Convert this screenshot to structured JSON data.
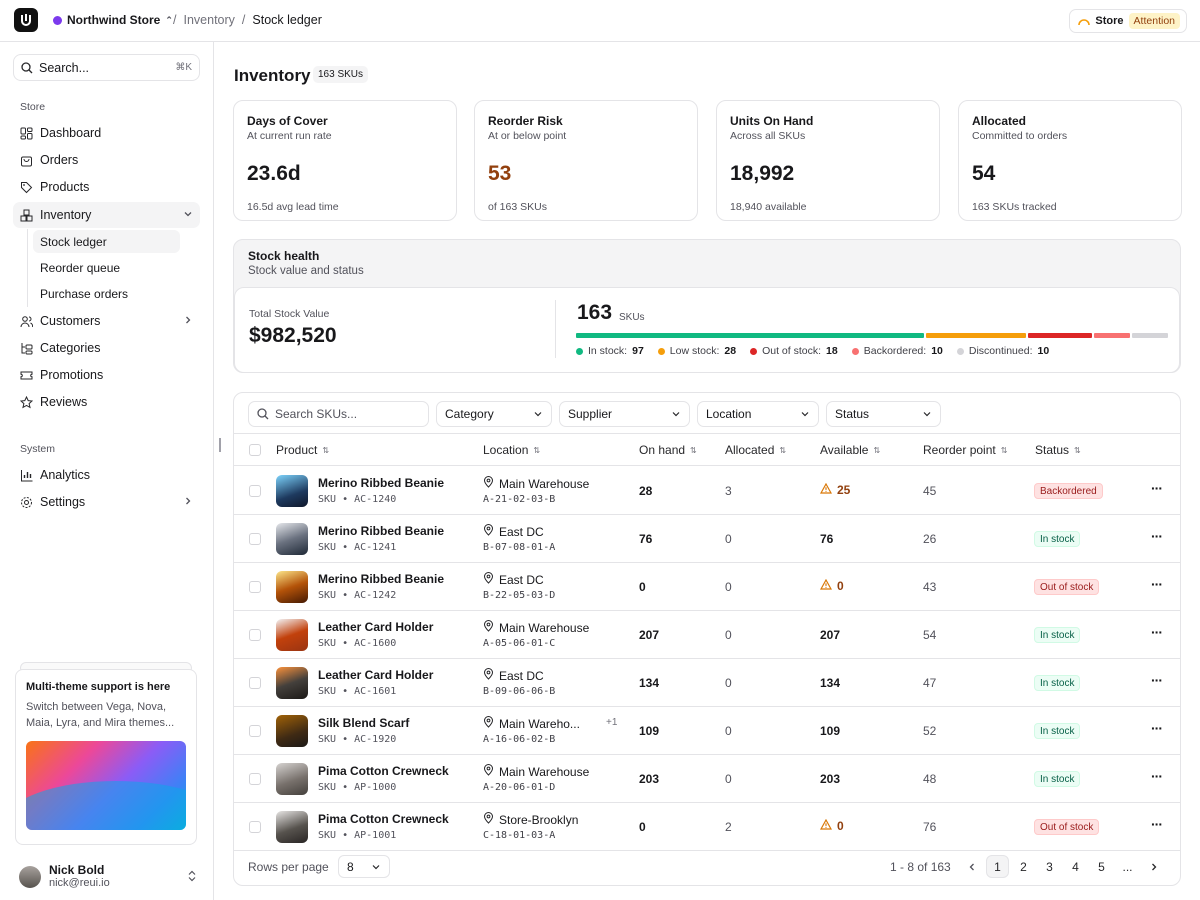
{
  "topbar": {
    "store_name": "Northwind Store",
    "breadcrumb": [
      "Inventory",
      "Stock ledger"
    ],
    "store_label": "Store",
    "attention_label": "Attention"
  },
  "sidebar": {
    "search_placeholder": "Search...",
    "search_shortcut": "⌘K",
    "section_store": "Store",
    "section_system": "System",
    "items": {
      "dashboard": "Dashboard",
      "orders": "Orders",
      "products": "Products",
      "inventory": "Inventory",
      "stock_ledger": "Stock ledger",
      "reorder_queue": "Reorder queue",
      "purchase_orders": "Purchase orders",
      "customers": "Customers",
      "categories": "Categories",
      "promotions": "Promotions",
      "reviews": "Reviews",
      "analytics": "Analytics",
      "settings": "Settings"
    },
    "promo": {
      "title": "Multi-theme support is here",
      "text": "Switch between Vega, Nova, Maia, Lyra, and Mira themes..."
    },
    "user": {
      "name": "Nick Bold",
      "email": "nick@reui.io"
    }
  },
  "page": {
    "title": "Inventory",
    "count_badge": "163 SKUs"
  },
  "kpis": [
    {
      "title": "Days of Cover",
      "subtitle": "At current run rate",
      "value": "23.6d",
      "footer": "16.5d avg lead time"
    },
    {
      "title": "Reorder Risk",
      "subtitle": "At or below point",
      "value": "53",
      "footer": "of 163 SKUs"
    },
    {
      "title": "Units On Hand",
      "subtitle": "Across all SKUs",
      "value": "18,992",
      "footer": "18,940 available"
    },
    {
      "title": "Allocated",
      "subtitle": "Committed to orders",
      "value": "54",
      "footer": "163 SKUs tracked"
    }
  ],
  "health": {
    "title": "Stock health",
    "subtitle": "Stock value and status",
    "total_label": "Total Stock Value",
    "total_value": "$982,520",
    "sku_count": "163",
    "sku_unit": "SKUs",
    "segments": [
      {
        "label": "In stock:",
        "value": 97,
        "color": "#10b981"
      },
      {
        "label": "Low stock:",
        "value": 28,
        "color": "#f59e0b"
      },
      {
        "label": "Out of stock:",
        "value": 18,
        "color": "#dc2626"
      },
      {
        "label": "Backordered:",
        "value": 10,
        "color": "#f87171"
      },
      {
        "label": "Discontinued:",
        "value": 10,
        "color": "#d4d4d8"
      }
    ]
  },
  "filters": {
    "search_placeholder": "Search SKUs...",
    "category": "Category",
    "supplier": "Supplier",
    "location": "Location",
    "status": "Status"
  },
  "columns": {
    "product": "Product",
    "location": "Location",
    "on_hand": "On hand",
    "allocated": "Allocated",
    "available": "Available",
    "reorder": "Reorder point",
    "status": "Status"
  },
  "rows": [
    {
      "name": "Merino Ribbed Beanie",
      "sku_label": "SKU",
      "sku": "AC-1240",
      "location": "Main Warehouse",
      "loc_code": "A-21-02-03-B",
      "extra": "",
      "on_hand": "28",
      "allocated": "3",
      "available": "25",
      "warn": true,
      "reorder": "45",
      "status": "Backordered",
      "status_kind": "back"
    },
    {
      "name": "Merino Ribbed Beanie",
      "sku_label": "SKU",
      "sku": "AC-1241",
      "location": "East DC",
      "loc_code": "B-07-08-01-A",
      "extra": "",
      "on_hand": "76",
      "allocated": "0",
      "available": "76",
      "warn": false,
      "reorder": "26",
      "status": "In stock",
      "status_kind": "in"
    },
    {
      "name": "Merino Ribbed Beanie",
      "sku_label": "SKU",
      "sku": "AC-1242",
      "location": "East DC",
      "loc_code": "B-22-05-03-D",
      "extra": "",
      "on_hand": "0",
      "allocated": "0",
      "available": "0",
      "warn": true,
      "reorder": "43",
      "status": "Out of stock",
      "status_kind": "out"
    },
    {
      "name": "Leather Card Holder",
      "sku_label": "SKU",
      "sku": "AC-1600",
      "location": "Main Warehouse",
      "loc_code": "A-05-06-01-C",
      "extra": "",
      "on_hand": "207",
      "allocated": "0",
      "available": "207",
      "warn": false,
      "reorder": "54",
      "status": "In stock",
      "status_kind": "in"
    },
    {
      "name": "Leather Card Holder",
      "sku_label": "SKU",
      "sku": "AC-1601",
      "location": "East DC",
      "loc_code": "B-09-06-06-B",
      "extra": "",
      "on_hand": "134",
      "allocated": "0",
      "available": "134",
      "warn": false,
      "reorder": "47",
      "status": "In stock",
      "status_kind": "in"
    },
    {
      "name": "Silk Blend Scarf",
      "sku_label": "SKU",
      "sku": "AC-1920",
      "location": "Main Wareho...",
      "loc_code": "A-16-06-02-B",
      "extra": "+1",
      "on_hand": "109",
      "allocated": "0",
      "available": "109",
      "warn": false,
      "reorder": "52",
      "status": "In stock",
      "status_kind": "in"
    },
    {
      "name": "Pima Cotton Crewneck",
      "sku_label": "SKU",
      "sku": "AP-1000",
      "location": "Main Warehouse",
      "loc_code": "A-20-06-01-D",
      "extra": "",
      "on_hand": "203",
      "allocated": "0",
      "available": "203",
      "warn": false,
      "reorder": "48",
      "status": "In stock",
      "status_kind": "in"
    },
    {
      "name": "Pima Cotton Crewneck",
      "sku_label": "SKU",
      "sku": "AP-1001",
      "location": "Store-Brooklyn",
      "loc_code": "C-18-01-03-A",
      "extra": "",
      "on_hand": "0",
      "allocated": "2",
      "available": "0",
      "warn": true,
      "reorder": "76",
      "status": "Out of stock",
      "status_kind": "out"
    }
  ],
  "pagination": {
    "rows_per_page_label": "Rows per page",
    "rows_per_page": "8",
    "range": "1 - 8 of 163",
    "pages": [
      "1",
      "2",
      "3",
      "4",
      "5",
      "..."
    ]
  }
}
